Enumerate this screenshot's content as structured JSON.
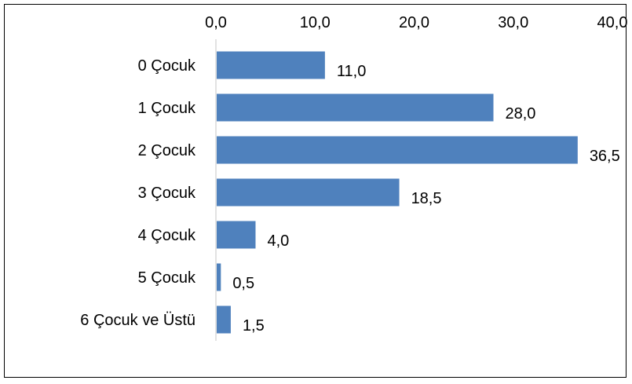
{
  "chart_data": {
    "type": "bar",
    "orientation": "horizontal",
    "title": "",
    "xlabel": "",
    "ylabel": "",
    "categories": [
      "0 Çocuk",
      "1 Çocuk",
      "2 Çocuk",
      "3 Çocuk",
      "4 Çocuk",
      "5 Çocuk",
      "6 Çocuk ve Üstü"
    ],
    "values": [
      11.0,
      28.0,
      36.5,
      18.5,
      4.0,
      0.5,
      1.5
    ],
    "value_labels": [
      "11,0",
      "28,0",
      "36,5",
      "18,5",
      "4,0",
      "0,5",
      "1,5"
    ],
    "xlim": [
      0,
      40
    ],
    "x_ticks": [
      0,
      10,
      20,
      30,
      40
    ],
    "x_tick_labels": [
      "0,0",
      "10,0",
      "20,0",
      "30,0",
      "40,0"
    ],
    "x_axis_position": "top",
    "grid": false,
    "legend": "none",
    "bar_color": "#4f81bd",
    "axis_color": "#d9d9d9"
  }
}
